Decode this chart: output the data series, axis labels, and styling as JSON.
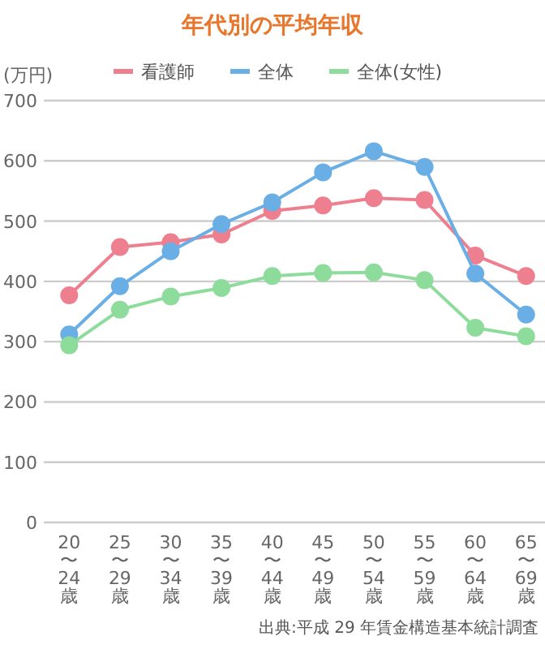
{
  "chart_data": {
    "type": "line",
    "title": "年代別の平均年収",
    "ylabel": "(万円)",
    "categories": [
      "20〜24歳",
      "25〜29歳",
      "30〜34歳",
      "35〜39歳",
      "40〜44歳",
      "45〜49歳",
      "50〜54歳",
      "55〜59歳",
      "60〜64歳",
      "65〜69歳"
    ],
    "series": [
      {
        "name": "看護師",
        "color": "#ee7f8f",
        "values": [
          377,
          457,
          465,
          478,
          517,
          526,
          538,
          535,
          443,
          409
        ]
      },
      {
        "name": "全体",
        "color": "#6aaee6",
        "values": [
          312,
          392,
          450,
          495,
          531,
          581,
          616,
          590,
          413,
          345
        ]
      },
      {
        "name": "全体(女性)",
        "color": "#8ddc9c",
        "values": [
          294,
          353,
          375,
          389,
          409,
          414,
          415,
          402,
          323,
          309
        ]
      }
    ],
    "ylim": [
      0,
      700
    ],
    "yticks": [
      0,
      100,
      200,
      300,
      400,
      500,
      600,
      700
    ],
    "grid": "y",
    "legend": "top",
    "marker": "circle",
    "line_style": "solid",
    "annotations": [
      "出典:平成 29 年賃金構造基本統計調査"
    ]
  }
}
